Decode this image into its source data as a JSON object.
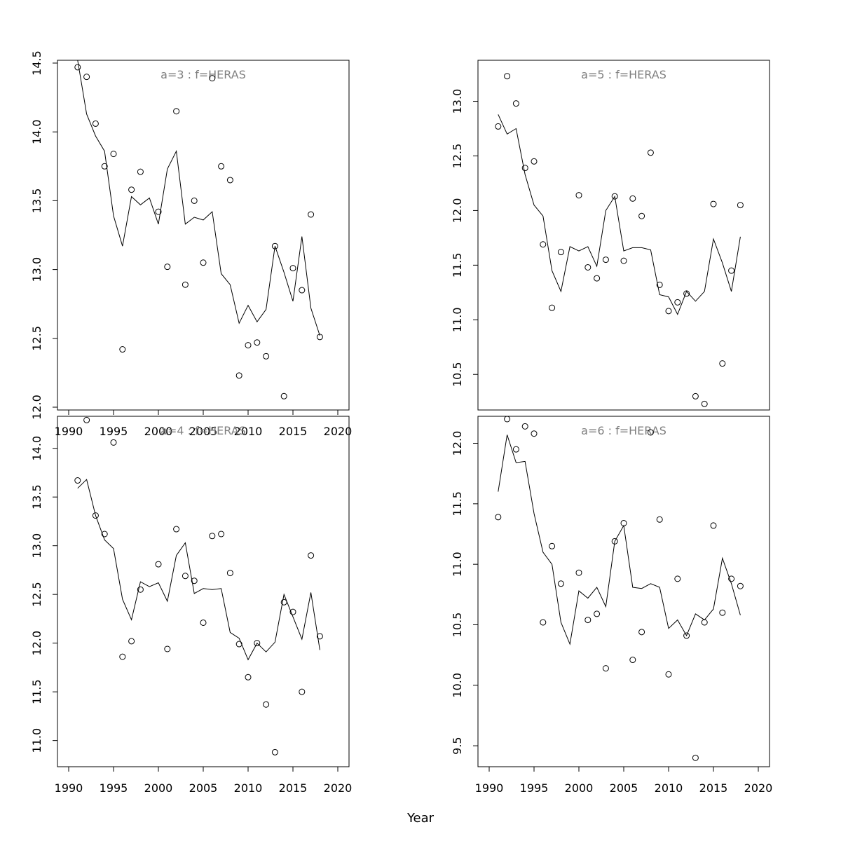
{
  "figure": {
    "xlabel": "Year",
    "colors": {
      "line": "#000000",
      "points": "#000000",
      "title": "#808080"
    }
  },
  "chart_data": [
    {
      "type": "line",
      "title": "a=3  :  f=HERAS",
      "xlim": [
        1990,
        2020
      ],
      "ylim": [
        12.0,
        14.5
      ],
      "xticks": [
        "1990",
        "1995",
        "2000",
        "2005",
        "2010",
        "2015",
        "2020"
      ],
      "yticks": [
        "12.0",
        "12.5",
        "13.0",
        "13.5",
        "14.0",
        "14.5"
      ],
      "years": [
        1991,
        1992,
        1993,
        1994,
        1995,
        1996,
        1997,
        1998,
        1999,
        2000,
        2001,
        2002,
        2003,
        2004,
        2005,
        2006,
        2007,
        2008,
        2009,
        2010,
        2011,
        2012,
        2013,
        2014,
        2015,
        2016,
        2017,
        2018
      ],
      "observed": [
        14.47,
        14.4,
        14.06,
        13.75,
        13.84,
        12.42,
        13.58,
        13.71,
        null,
        13.42,
        13.02,
        14.15,
        12.89,
        13.5,
        13.05,
        14.39,
        13.75,
        13.65,
        12.23,
        12.45,
        12.47,
        12.37,
        13.17,
        12.08,
        13.01,
        12.85,
        13.4,
        12.51
      ],
      "fitted": [
        14.52,
        14.13,
        13.97,
        13.86,
        13.39,
        13.17,
        13.53,
        13.47,
        13.52,
        13.33,
        13.73,
        13.86,
        13.33,
        13.38,
        13.36,
        13.42,
        12.97,
        12.89,
        12.61,
        12.74,
        12.62,
        12.71,
        13.17,
        12.98,
        12.77,
        13.24,
        12.72,
        12.52
      ]
    },
    {
      "type": "line",
      "title": "a=5  :  f=HERAS",
      "xlim": [
        1990,
        2020
      ],
      "ylim": [
        10.2,
        13.35
      ],
      "xticks": [],
      "yticks": [
        "10.5",
        "11.0",
        "11.5",
        "12.0",
        "12.5",
        "13.0"
      ],
      "years": [
        1991,
        1992,
        1993,
        1994,
        1995,
        1996,
        1997,
        1998,
        1999,
        2000,
        2001,
        2002,
        2003,
        2004,
        2005,
        2006,
        2007,
        2008,
        2009,
        2010,
        2011,
        2012,
        2013,
        2014,
        2015,
        2016,
        2017,
        2018
      ],
      "observed": [
        12.77,
        13.23,
        12.98,
        12.39,
        12.45,
        11.69,
        11.11,
        11.62,
        null,
        12.14,
        11.48,
        11.38,
        11.55,
        12.13,
        11.54,
        12.11,
        11.95,
        12.53,
        11.32,
        11.08,
        11.16,
        11.24,
        10.3,
        10.23,
        12.06,
        10.6,
        11.45,
        12.05
      ],
      "fitted": [
        12.88,
        12.7,
        12.75,
        12.33,
        12.05,
        11.95,
        11.45,
        11.26,
        11.67,
        11.63,
        11.67,
        11.49,
        12.0,
        12.13,
        11.63,
        11.66,
        11.66,
        11.64,
        11.23,
        11.21,
        11.05,
        11.26,
        11.17,
        11.26,
        11.74,
        11.52,
        11.26,
        11.76
      ]
    },
    {
      "type": "line",
      "title": "a=4  :  f=HERAS",
      "xlim": [
        1990,
        2020
      ],
      "ylim": [
        10.76,
        14.3
      ],
      "xticks": [
        "1990",
        "1995",
        "2000",
        "2005",
        "2010",
        "2015",
        "2020"
      ],
      "yticks": [
        "11.0",
        "11.5",
        "12.0",
        "12.5",
        "13.0",
        "13.5",
        "14.0"
      ],
      "years": [
        1991,
        1992,
        1993,
        1994,
        1995,
        1996,
        1997,
        1998,
        1999,
        2000,
        2001,
        2002,
        2003,
        2004,
        2005,
        2006,
        2007,
        2008,
        2009,
        2010,
        2011,
        2012,
        2013,
        2014,
        2015,
        2016,
        2017,
        2018
      ],
      "observed": [
        13.67,
        14.29,
        13.31,
        13.12,
        14.06,
        11.86,
        12.02,
        12.55,
        null,
        12.81,
        11.94,
        13.17,
        12.69,
        12.64,
        12.21,
        13.1,
        13.12,
        12.72,
        11.99,
        11.65,
        12.0,
        11.37,
        10.88,
        12.42,
        12.32,
        11.5,
        12.9,
        12.07
      ],
      "fitted": [
        13.59,
        13.68,
        13.31,
        13.06,
        12.97,
        12.45,
        12.24,
        12.63,
        12.58,
        12.62,
        12.43,
        12.9,
        13.03,
        12.51,
        12.56,
        12.55,
        12.56,
        12.11,
        12.05,
        11.83,
        12.0,
        11.91,
        12.01,
        12.5,
        12.27,
        12.04,
        12.52,
        11.93
      ]
    },
    {
      "type": "line",
      "title": "a=6  :  f=HERAS",
      "xlim": [
        1990,
        2020
      ],
      "ylim": [
        9.35,
        12.2
      ],
      "xticks": [
        "1990",
        "1995",
        "2000",
        "2005",
        "2010",
        "2015",
        "2020"
      ],
      "yticks": [
        "9.5",
        "10.0",
        "10.5",
        "11.0",
        "11.5",
        "12.0"
      ],
      "years": [
        1991,
        1992,
        1993,
        1994,
        1995,
        1996,
        1997,
        1998,
        1999,
        2000,
        2001,
        2002,
        2003,
        2004,
        2005,
        2006,
        2007,
        2008,
        2009,
        2010,
        2011,
        2012,
        2013,
        2014,
        2015,
        2016,
        2017,
        2018
      ],
      "observed": [
        11.39,
        12.2,
        11.95,
        12.14,
        12.08,
        10.52,
        11.15,
        10.84,
        null,
        10.93,
        10.54,
        10.59,
        10.14,
        11.19,
        11.34,
        10.21,
        10.44,
        12.09,
        11.37,
        10.09,
        10.88,
        10.41,
        9.4,
        10.52,
        11.32,
        10.6,
        10.88,
        10.82
      ],
      "fitted": [
        11.6,
        12.07,
        11.84,
        11.85,
        11.42,
        11.1,
        11.0,
        10.52,
        10.34,
        10.78,
        10.72,
        10.81,
        10.65,
        11.19,
        11.32,
        10.81,
        10.8,
        10.84,
        10.81,
        10.47,
        10.54,
        10.41,
        10.59,
        10.54,
        10.63,
        11.05,
        10.84,
        10.58
      ]
    }
  ]
}
